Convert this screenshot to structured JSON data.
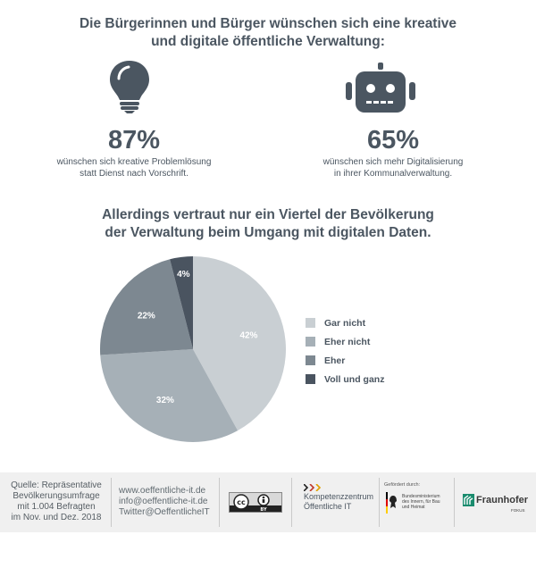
{
  "headline_top": {
    "line1": "Die Bürgerinnen und Bürger wünschen sich eine kreative",
    "line2": "und digitale öffentliche Verwaltung:"
  },
  "stats": [
    {
      "icon": "lightbulb-icon",
      "value": "87%",
      "line1": "wünschen sich kreative Problemlösung",
      "line2": "statt Dienst nach Vorschrift."
    },
    {
      "icon": "robot-icon",
      "value": "65%",
      "line1": "wünschen sich mehr Digitalisierung",
      "line2": "in ihrer Kommunalverwaltung."
    }
  ],
  "headline_mid": {
    "line1": "Allerdings vertraut nur ein Viertel der Bevölkerung",
    "line2": "der Verwaltung beim Umgang mit digitalen Daten."
  },
  "chart_data": {
    "type": "pie",
    "categories": [
      "Gar nicht",
      "Eher nicht",
      "Eher",
      "Voll und ganz"
    ],
    "values": [
      42,
      32,
      22,
      4
    ],
    "value_labels": [
      "42%",
      "32%",
      "22%",
      "4%"
    ],
    "colors": [
      "#c9cfd3",
      "#a6b0b7",
      "#7d8891",
      "#4a5460"
    ],
    "legend_position": "right"
  },
  "footer": {
    "source": [
      "Quelle: Repräsentative",
      "Bevölkerungsumfrage",
      "mit 1.004 Befragten",
      "im Nov. und Dez. 2018"
    ],
    "contact": [
      "www.oeffentliche-it.de",
      "info@oeffentliche-it.de",
      "Twitter@OeffentlicheIT"
    ],
    "cc_label": "BY",
    "kompetenz": [
      "Kompetenzzentrum",
      "Öffentliche IT"
    ],
    "funded_by": "Gefördert durch:",
    "ministry": [
      "Bundesministerium",
      "des Innern, für Bau",
      "und Heimat"
    ],
    "fraunhofer": "Fraunhofer",
    "fraunhofer_sub": "FOKUS"
  }
}
